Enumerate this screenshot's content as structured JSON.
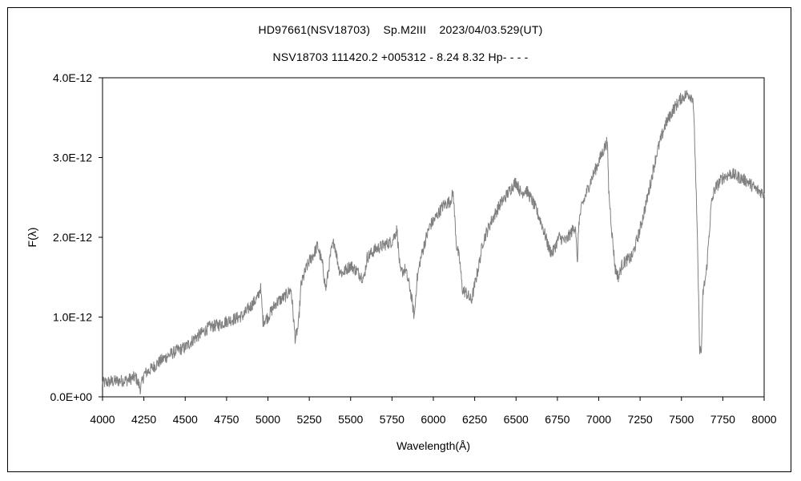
{
  "chart_data": {
    "type": "line",
    "title": "HD97661(NSV18703)    Sp.M2III    2023/04/03.529(UT)",
    "subtitle": "NSV18703 111420.2 +005312 - 8.24 8.32 Hp- - - -",
    "xlabel": "Wavelength(Å)",
    "ylabel": "F(λ)",
    "xlim": [
      4000,
      8000
    ],
    "ylim": [
      0,
      4e-12
    ],
    "x_ticks": [
      4000,
      4250,
      4500,
      4750,
      5000,
      5250,
      5500,
      5750,
      6000,
      6250,
      6500,
      6750,
      7000,
      7250,
      7500,
      7750,
      8000
    ],
    "y_ticks": [
      0,
      1e-12,
      2e-12,
      3e-12,
      4e-12
    ],
    "y_tick_labels": [
      "0.0E+00",
      "1.0E-12",
      "2.0E-12",
      "3.0E-12",
      "4.0E-12"
    ],
    "grid": false,
    "line_color": "#808080",
    "series": [
      {
        "x": [
          4000,
          4050,
          4100,
          4150,
          4200,
          4230,
          4250,
          4300,
          4350,
          4400,
          4450,
          4500,
          4550,
          4600,
          4650,
          4700,
          4750,
          4800,
          4850,
          4900,
          4940,
          4955,
          4970,
          5000,
          5050,
          5100,
          5140,
          5165,
          5185,
          5200,
          5230,
          5250,
          5280,
          5300,
          5330,
          5350,
          5380,
          5400,
          5430,
          5450,
          5500,
          5550,
          5580,
          5600,
          5650,
          5700,
          5750,
          5780,
          5800,
          5830,
          5860,
          5885,
          5900,
          5920,
          5950,
          5980,
          6000,
          6030,
          6060,
          6100,
          6120,
          6140,
          6160,
          6175,
          6200,
          6230,
          6250,
          6280,
          6300,
          6330,
          6350,
          6400,
          6450,
          6480,
          6500,
          6530,
          6560,
          6600,
          6650,
          6680,
          6700,
          6720,
          6740,
          6760,
          6800,
          6830,
          6860,
          6870,
          6880,
          6900,
          6950,
          7000,
          7030,
          7050,
          7055,
          7060,
          7080,
          7100,
          7120,
          7140,
          7160,
          7200,
          7250,
          7300,
          7350,
          7400,
          7450,
          7500,
          7540,
          7570,
          7580,
          7590,
          7600,
          7610,
          7620,
          7630,
          7650,
          7680,
          7700,
          7750,
          7800,
          7850,
          7900,
          7950,
          8000
        ],
        "y": [
          1.7e-13,
          1.9e-13,
          2e-13,
          2.1e-13,
          2.5e-13,
          1e-13,
          2.8e-13,
          3.6e-13,
          4.5e-13,
          5.2e-13,
          5.8e-13,
          6.2e-13,
          7.2e-13,
          8e-13,
          8.8e-13,
          9e-13,
          9.5e-13,
          9.8e-13,
          1.02e-12,
          1.15e-12,
          1.25e-12,
          1.38e-12,
          9.5e-13,
          1e-12,
          1.18e-12,
          1.25e-12,
          1.35e-12,
          7.2e-13,
          9e-13,
          1.4e-12,
          1.6e-12,
          1.7e-12,
          1.8e-12,
          1.9e-12,
          1.65e-12,
          1.35e-12,
          1.8e-12,
          1.95e-12,
          1.6e-12,
          1.55e-12,
          1.65e-12,
          1.55e-12,
          1.48e-12,
          1.75e-12,
          1.85e-12,
          1.9e-12,
          1.95e-12,
          2.1e-12,
          1.55e-12,
          1.6e-12,
          1.35e-12,
          1e-12,
          1.45e-12,
          1.7e-12,
          1.95e-12,
          2.15e-12,
          2.2e-12,
          2.3e-12,
          2.4e-12,
          2.45e-12,
          2.55e-12,
          1.9e-12,
          1.7e-12,
          1.35e-12,
          1.3e-12,
          1.2e-12,
          1.4e-12,
          1.7e-12,
          1.95e-12,
          2.1e-12,
          2.2e-12,
          2.4e-12,
          2.55e-12,
          2.65e-12,
          2.7e-12,
          2.55e-12,
          2.6e-12,
          2.45e-12,
          2.2e-12,
          2e-12,
          1.85e-12,
          1.8e-12,
          1.9e-12,
          2e-12,
          1.95e-12,
          2.05e-12,
          2.15e-12,
          1.65e-12,
          2.2e-12,
          2.4e-12,
          2.7e-12,
          2.95e-12,
          3.1e-12,
          3.2e-12,
          3e-12,
          2.6e-12,
          2.05e-12,
          1.6e-12,
          1.5e-12,
          1.65e-12,
          1.7e-12,
          1.75e-12,
          2.1e-12,
          2.55e-12,
          3.05e-12,
          3.4e-12,
          3.6e-12,
          3.75e-12,
          3.8e-12,
          3.75e-12,
          3.2e-12,
          2.5e-12,
          1.6e-12,
          6e-13,
          5.5e-13,
          1.3e-12,
          1.55e-12,
          2.4e-12,
          2.6e-12,
          2.75e-12,
          2.8e-12,
          2.75e-12,
          2.7e-12,
          2.6e-12,
          2.55e-12
        ]
      }
    ]
  }
}
